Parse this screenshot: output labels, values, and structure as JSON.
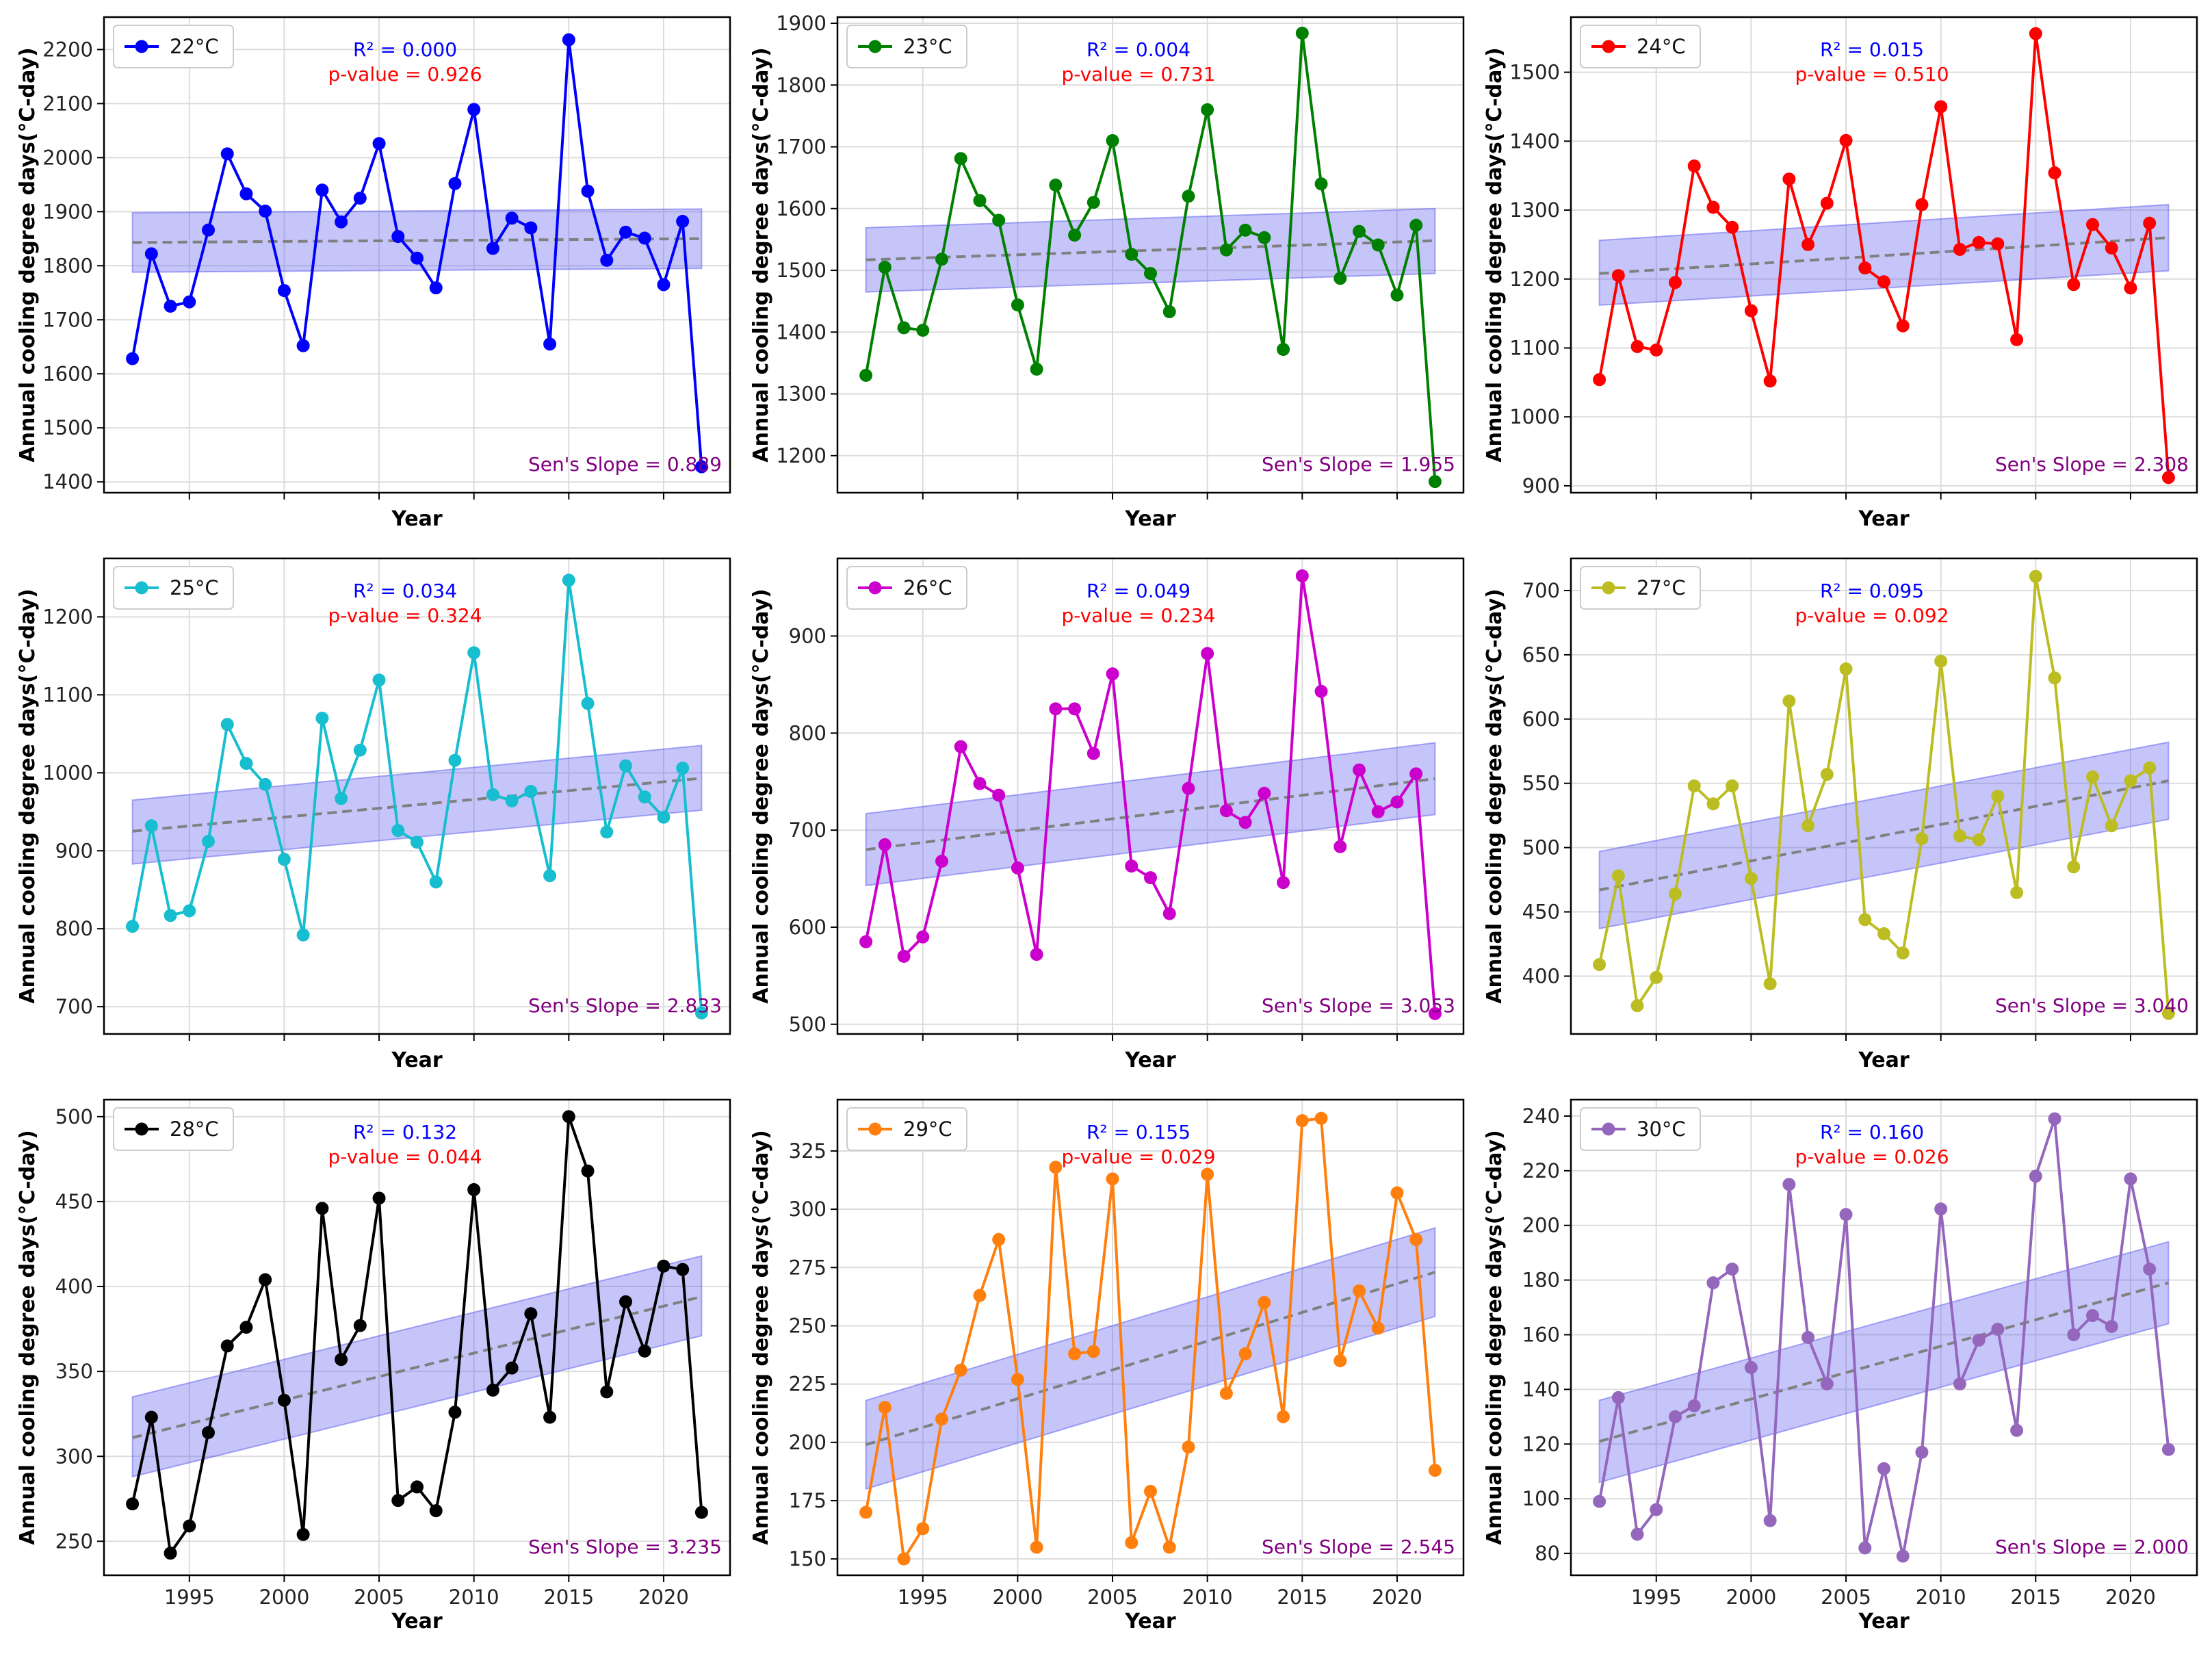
{
  "figure": {
    "xlabel": "Year",
    "ylabel": "Annual cooling degree days(°C-day)"
  },
  "chart_data": [
    {
      "type": "line",
      "legend": "22°C",
      "color": "#0000ff",
      "r2": "R² = 0.000",
      "pvalue": "p-value = 0.926",
      "sens": "Sen's Slope = 0.889",
      "xlabel": "Year",
      "ylabel": "Annual cooling degree days(°C-day)",
      "x": [
        1992,
        1993,
        1994,
        1995,
        1996,
        1997,
        1998,
        1999,
        2000,
        2001,
        2002,
        2003,
        2004,
        2005,
        2006,
        2007,
        2008,
        2009,
        2010,
        2011,
        2012,
        2013,
        2014,
        2015,
        2016,
        2017,
        2018,
        2019,
        2020,
        2021,
        2022
      ],
      "values": [
        1628,
        1822,
        1725,
        1733,
        1866,
        2007,
        1933,
        1901,
        1754,
        1652,
        1940,
        1881,
        1925,
        2026,
        1854,
        1814,
        1759,
        1952,
        2089,
        1832,
        1888,
        1870,
        1655,
        2218,
        1938,
        1810,
        1862,
        1851,
        1765,
        1882,
        1428
      ],
      "trend": [
        1843,
        1850
      ],
      "band": [
        [
          1788,
          1898
        ],
        [
          1795,
          1905
        ]
      ],
      "xlim": [
        1990.5,
        2023.5
      ],
      "ylim": [
        1380,
        2260
      ],
      "yticks": [
        1400,
        1500,
        1600,
        1700,
        1800,
        1900,
        2000,
        2100,
        2200
      ],
      "xticks": [
        1995,
        2000,
        2005,
        2010,
        2015,
        2020
      ]
    },
    {
      "type": "line",
      "legend": "23°C",
      "color": "#008000",
      "r2": "R² = 0.004",
      "pvalue": "p-value = 0.731",
      "sens": "Sen's Slope = 1.955",
      "xlabel": "Year",
      "ylabel": "Annual cooling degree days(°C-day)",
      "x": [
        1992,
        1993,
        1994,
        1995,
        1996,
        1997,
        1998,
        1999,
        2000,
        2001,
        2002,
        2003,
        2004,
        2005,
        2006,
        2007,
        2008,
        2009,
        2010,
        2011,
        2012,
        2013,
        2014,
        2015,
        2016,
        2017,
        2018,
        2019,
        2020,
        2021,
        2022
      ],
      "values": [
        1330,
        1505,
        1407,
        1403,
        1518,
        1681,
        1613,
        1581,
        1444,
        1340,
        1638,
        1557,
        1610,
        1710,
        1526,
        1495,
        1433,
        1620,
        1760,
        1533,
        1565,
        1553,
        1372,
        1884,
        1640,
        1487,
        1563,
        1541,
        1460,
        1573,
        1158
      ],
      "trend": [
        1517,
        1548
      ],
      "band": [
        [
          1465,
          1569
        ],
        [
          1495,
          1600
        ]
      ],
      "xlim": [
        1990.5,
        2023.5
      ],
      "ylim": [
        1140,
        1910
      ],
      "yticks": [
        1200,
        1300,
        1400,
        1500,
        1600,
        1700,
        1800,
        1900
      ],
      "xticks": [
        1995,
        2000,
        2005,
        2010,
        2015,
        2020
      ]
    },
    {
      "type": "line",
      "legend": "24°C",
      "color": "#ff0000",
      "r2": "R² = 0.015",
      "pvalue": "p-value = 0.510",
      "sens": "Sen's Slope = 2.308",
      "xlabel": "Year",
      "ylabel": "Annual cooling degree days(°C-day)",
      "x": [
        1992,
        1993,
        1994,
        1995,
        1996,
        1997,
        1998,
        1999,
        2000,
        2001,
        2002,
        2003,
        2004,
        2005,
        2006,
        2007,
        2008,
        2009,
        2010,
        2011,
        2012,
        2013,
        2014,
        2015,
        2016,
        2017,
        2018,
        2019,
        2020,
        2021,
        2022
      ],
      "values": [
        1054,
        1205,
        1102,
        1097,
        1195,
        1364,
        1304,
        1275,
        1154,
        1052,
        1345,
        1250,
        1310,
        1401,
        1216,
        1196,
        1132,
        1308,
        1450,
        1243,
        1253,
        1251,
        1112,
        1556,
        1354,
        1192,
        1279,
        1245,
        1187,
        1281,
        912
      ],
      "trend": [
        1208,
        1260
      ],
      "band": [
        [
          1162,
          1256
        ],
        [
          1212,
          1308
        ]
      ],
      "xlim": [
        1990.5,
        2023.5
      ],
      "ylim": [
        890,
        1580
      ],
      "yticks": [
        900,
        1000,
        1100,
        1200,
        1300,
        1400,
        1500
      ],
      "xticks": [
        1995,
        2000,
        2005,
        2010,
        2015,
        2020
      ]
    },
    {
      "type": "line",
      "legend": "25°C",
      "color": "#17becf",
      "r2": "R² = 0.034",
      "pvalue": "p-value = 0.324",
      "sens": "Sen's Slope = 2.833",
      "xlabel": "Year",
      "ylabel": "Annual cooling degree days(°C-day)",
      "x": [
        1992,
        1993,
        1994,
        1995,
        1996,
        1997,
        1998,
        1999,
        2000,
        2001,
        2002,
        2003,
        2004,
        2005,
        2006,
        2007,
        2008,
        2009,
        2010,
        2011,
        2012,
        2013,
        2014,
        2015,
        2016,
        2017,
        2018,
        2019,
        2020,
        2021,
        2022
      ],
      "values": [
        803,
        932,
        817,
        823,
        912,
        1062,
        1012,
        985,
        889,
        792,
        1070,
        967,
        1029,
        1119,
        926,
        911,
        860,
        1016,
        1154,
        972,
        964,
        976,
        868,
        1247,
        1089,
        924,
        1009,
        969,
        943,
        1006,
        692
      ],
      "trend": [
        925,
        993
      ],
      "band": [
        [
          883,
          965
        ],
        [
          952,
          1035
        ]
      ],
      "xlim": [
        1990.5,
        2023.5
      ],
      "ylim": [
        665,
        1275
      ],
      "yticks": [
        700,
        800,
        900,
        1000,
        1100,
        1200
      ],
      "xticks": [
        1995,
        2000,
        2005,
        2010,
        2015,
        2020
      ]
    },
    {
      "type": "line",
      "legend": "26°C",
      "color": "#cc00cc",
      "r2": "R² = 0.049",
      "pvalue": "p-value = 0.234",
      "sens": "Sen's Slope = 3.053",
      "xlabel": "Year",
      "ylabel": "Annual cooling degree days(°C-day)",
      "x": [
        1992,
        1993,
        1994,
        1995,
        1996,
        1997,
        1998,
        1999,
        2000,
        2001,
        2002,
        2003,
        2004,
        2005,
        2006,
        2007,
        2008,
        2009,
        2010,
        2011,
        2012,
        2013,
        2014,
        2015,
        2016,
        2017,
        2018,
        2019,
        2020,
        2021,
        2022
      ],
      "values": [
        585,
        685,
        570,
        590,
        668,
        786,
        748,
        736,
        661,
        572,
        825,
        825,
        779,
        861,
        663,
        651,
        614,
        743,
        882,
        720,
        708,
        738,
        646,
        962,
        843,
        683,
        762,
        719,
        729,
        758,
        511
      ],
      "trend": [
        680,
        753
      ],
      "band": [
        [
          643,
          717
        ],
        [
          716,
          790
        ]
      ],
      "xlim": [
        1990.5,
        2023.5
      ],
      "ylim": [
        490,
        980
      ],
      "yticks": [
        500,
        600,
        700,
        800,
        900
      ],
      "xticks": [
        1995,
        2000,
        2005,
        2010,
        2015,
        2020
      ]
    },
    {
      "type": "line",
      "legend": "27°C",
      "color": "#bcbd22",
      "r2": "R² = 0.095",
      "pvalue": "p-value = 0.092",
      "sens": "Sen's Slope = 3.040",
      "xlabel": "Year",
      "ylabel": "Annual cooling degree days(°C-day)",
      "x": [
        1992,
        1993,
        1994,
        1995,
        1996,
        1997,
        1998,
        1999,
        2000,
        2001,
        2002,
        2003,
        2004,
        2005,
        2006,
        2007,
        2008,
        2009,
        2010,
        2011,
        2012,
        2013,
        2014,
        2015,
        2016,
        2017,
        2018,
        2019,
        2020,
        2021,
        2022
      ],
      "values": [
        409,
        478,
        377,
        399,
        464,
        548,
        534,
        548,
        476,
        394,
        614,
        517,
        557,
        639,
        444,
        433,
        418,
        507,
        645,
        509,
        506,
        540,
        465,
        711,
        632,
        485,
        555,
        517,
        552,
        562,
        371
      ],
      "trend": [
        467,
        552
      ],
      "band": [
        [
          437,
          497
        ],
        [
          522,
          582
        ]
      ],
      "xlim": [
        1990.5,
        2023.5
      ],
      "ylim": [
        355,
        725
      ],
      "yticks": [
        400,
        450,
        500,
        550,
        600,
        650,
        700
      ],
      "xticks": [
        1995,
        2000,
        2005,
        2010,
        2015,
        2020
      ]
    },
    {
      "type": "line",
      "legend": "28°C",
      "color": "#000000",
      "r2": "R² = 0.132",
      "pvalue": "p-value = 0.044",
      "sens": "Sen's Slope = 3.235",
      "xlabel": "Year",
      "ylabel": "Annual cooling degree days(°C-day)",
      "x": [
        1992,
        1993,
        1994,
        1995,
        1996,
        1997,
        1998,
        1999,
        2000,
        2001,
        2002,
        2003,
        2004,
        2005,
        2006,
        2007,
        2008,
        2009,
        2010,
        2011,
        2012,
        2013,
        2014,
        2015,
        2016,
        2017,
        2018,
        2019,
        2020,
        2021,
        2022
      ],
      "values": [
        272,
        323,
        243,
        259,
        314,
        365,
        376,
        404,
        333,
        254,
        446,
        357,
        377,
        452,
        274,
        282,
        268,
        326,
        457,
        339,
        352,
        384,
        323,
        500,
        468,
        338,
        391,
        362,
        412,
        410,
        267
      ],
      "trend": [
        311,
        394
      ],
      "band": [
        [
          288,
          335
        ],
        [
          371,
          418
        ]
      ],
      "xlim": [
        1990.5,
        2023.5
      ],
      "ylim": [
        230,
        510
      ],
      "yticks": [
        250,
        300,
        350,
        400,
        450,
        500
      ],
      "xticks": [
        1995,
        2000,
        2005,
        2010,
        2015,
        2020
      ]
    },
    {
      "type": "line",
      "legend": "29°C",
      "color": "#ff7f0e",
      "r2": "R² = 0.155",
      "pvalue": "p-value = 0.029",
      "sens": "Sen's Slope = 2.545",
      "xlabel": "Year",
      "ylabel": "Annual cooling degree days(°C-day)",
      "x": [
        1992,
        1993,
        1994,
        1995,
        1996,
        1997,
        1998,
        1999,
        2000,
        2001,
        2002,
        2003,
        2004,
        2005,
        2006,
        2007,
        2008,
        2009,
        2010,
        2011,
        2012,
        2013,
        2014,
        2015,
        2016,
        2017,
        2018,
        2019,
        2020,
        2021,
        2022
      ],
      "values": [
        170,
        215,
        150,
        163,
        210,
        231,
        263,
        287,
        227,
        155,
        318,
        238,
        239,
        313,
        157,
        179,
        155,
        198,
        315,
        221,
        238,
        260,
        211,
        338,
        339,
        235,
        265,
        249,
        307,
        287,
        188
      ],
      "trend": [
        199,
        273
      ],
      "band": [
        [
          180,
          218
        ],
        [
          254,
          292
        ]
      ],
      "xlim": [
        1990.5,
        2023.5
      ],
      "ylim": [
        143,
        347
      ],
      "yticks": [
        150,
        175,
        200,
        225,
        250,
        275,
        300,
        325
      ],
      "xticks": [
        1995,
        2000,
        2005,
        2010,
        2015,
        2020
      ]
    },
    {
      "type": "line",
      "legend": "30°C",
      "color": "#9467bd",
      "r2": "R² = 0.160",
      "pvalue": "p-value = 0.026",
      "sens": "Sen's Slope = 2.000",
      "xlabel": "Year",
      "ylabel": "Annual cooling degree days(°C-day)",
      "x": [
        1992,
        1993,
        1994,
        1995,
        1996,
        1997,
        1998,
        1999,
        2000,
        2001,
        2002,
        2003,
        2004,
        2005,
        2006,
        2007,
        2008,
        2009,
        2010,
        2011,
        2012,
        2013,
        2014,
        2015,
        2016,
        2017,
        2018,
        2019,
        2020,
        2021,
        2022
      ],
      "values": [
        99,
        137,
        87,
        96,
        130,
        134,
        179,
        184,
        148,
        92,
        215,
        159,
        142,
        204,
        82,
        111,
        79,
        117,
        206,
        142,
        158,
        162,
        125,
        218,
        239,
        160,
        167,
        163,
        217,
        184,
        118
      ],
      "trend": [
        121,
        179
      ],
      "band": [
        [
          106,
          136
        ],
        [
          164,
          194
        ]
      ],
      "xlim": [
        1990.5,
        2023.5
      ],
      "ylim": [
        72,
        246
      ],
      "yticks": [
        80,
        100,
        120,
        140,
        160,
        180,
        200,
        220,
        240
      ],
      "xticks": [
        1995,
        2000,
        2005,
        2010,
        2015,
        2020
      ]
    }
  ]
}
